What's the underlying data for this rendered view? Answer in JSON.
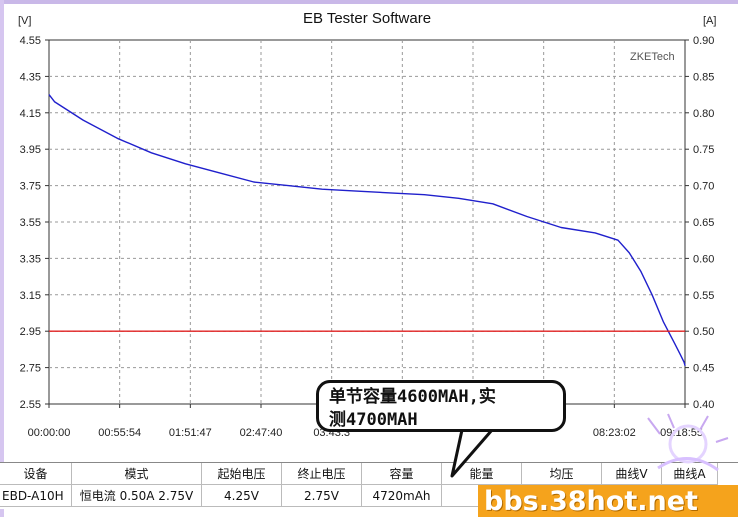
{
  "app": {
    "title": "EB Tester Software",
    "watermark": "ZKETech"
  },
  "chart_data": {
    "type": "line",
    "title": "EB Tester Software",
    "ylabel": "[V]",
    "ylabel_right": "[A]",
    "ylim": [
      2.55,
      4.55
    ],
    "ylim_right": [
      0.4,
      0.9
    ],
    "yticks": [
      "4.55",
      "4.35",
      "4.15",
      "3.95",
      "3.75",
      "3.55",
      "3.35",
      "3.15",
      "2.95",
      "2.75",
      "2.55"
    ],
    "yticks_right": [
      "0.90",
      "0.85",
      "0.80",
      "0.75",
      "0.70",
      "0.65",
      "0.60",
      "0.55",
      "0.50",
      "0.45",
      "0.40"
    ],
    "xticks": [
      "00:00:00",
      "00:55:54",
      "01:51:47",
      "02:47:40",
      "03:43:3",
      "",
      "",
      "",
      "08:23:02",
      "09:18:55"
    ],
    "xlim_seconds": [
      0,
      33535
    ],
    "grid": true,
    "series": [
      {
        "color": "#2020cc",
        "axis": "left",
        "x_min": [
          0,
          5,
          30,
          60,
          90,
          120,
          150,
          180,
          210,
          240,
          270,
          300,
          330,
          360,
          390,
          420,
          450,
          480,
          500,
          510,
          520,
          530,
          540,
          550,
          555,
          558,
          559
        ],
        "values": [
          4.25,
          4.21,
          4.11,
          4.01,
          3.93,
          3.87,
          3.82,
          3.77,
          3.75,
          3.73,
          3.72,
          3.71,
          3.7,
          3.68,
          3.65,
          3.58,
          3.52,
          3.49,
          3.45,
          3.38,
          3.28,
          3.15,
          3.0,
          2.88,
          2.82,
          2.78,
          2.76
        ]
      },
      {
        "color": "#e02020",
        "axis": "right",
        "x_min": [
          0,
          559
        ],
        "values": [
          0.5,
          0.5
        ]
      }
    ]
  },
  "results_table": {
    "headers": [
      "设备",
      "模式",
      "起始电压",
      "终止电压",
      "容量",
      "能量",
      "均压",
      "曲线V",
      "曲线A"
    ],
    "row": [
      "EBD-A10H",
      "恒电流 0.50A 2.75V",
      "4.25V",
      "2.75V",
      "4720mAh",
      "",
      "",
      "",
      ""
    ]
  },
  "callout": {
    "line1": "单节容量4600MAH,实",
    "line2": "测4700MAH"
  },
  "overlay_watermark": "bbs.38hot.net",
  "colors": {
    "voltage_line": "#2020cc",
    "current_line": "#e02020",
    "grid": "#9a9a9a",
    "watermark_bg": "#f5a31c"
  }
}
